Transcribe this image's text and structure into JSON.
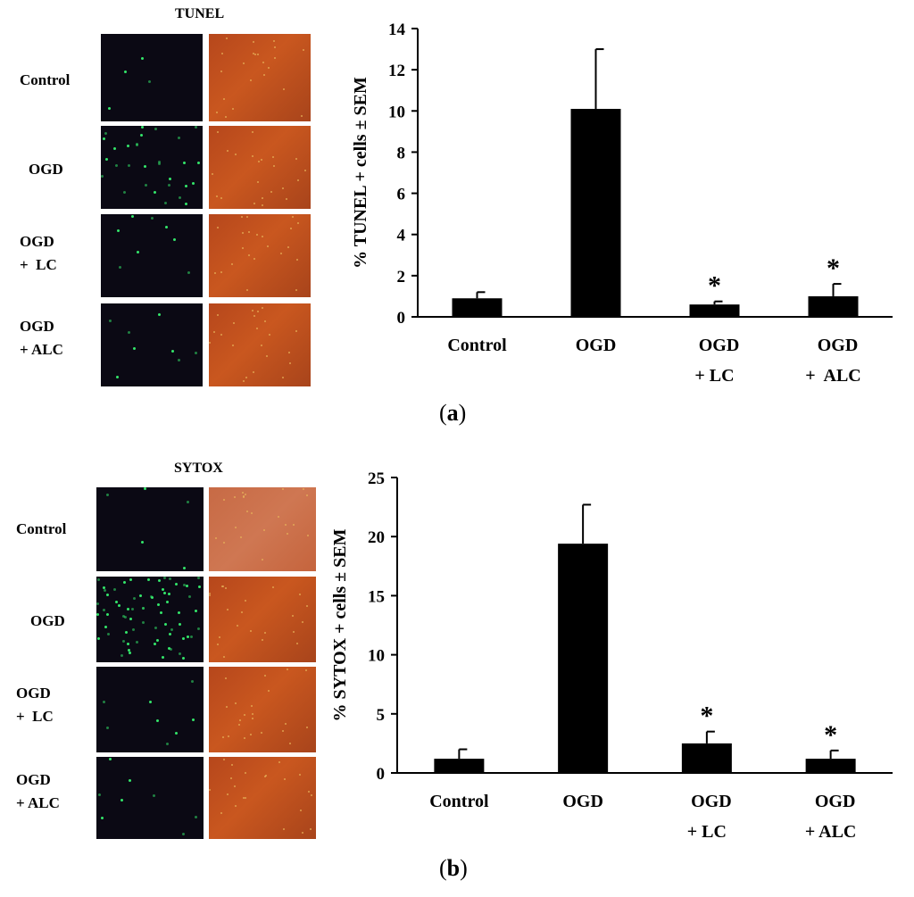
{
  "panel_a": {
    "image_title": "TUNEL",
    "row_labels": [
      "Control",
      "OGD",
      "OGD\n+  LC",
      "OGD\n+ ALC"
    ],
    "letter": "a"
  },
  "panel_b": {
    "image_title": "SYTOX",
    "row_labels": [
      "Control",
      "OGD",
      "OGD\n+  LC",
      "OGD\n+ ALC"
    ],
    "letter": "b"
  },
  "colors": {
    "bar": "#000000",
    "axis": "#000000"
  },
  "chart_data": [
    {
      "type": "bar",
      "title": "",
      "xlabel": "",
      "ylabel": "%  TUNEL + cells ± SEM",
      "categories": [
        "Control",
        "OGD",
        "OGD\n+ LC",
        "OGD\n+  ALC"
      ],
      "values": [
        0.9,
        10.1,
        0.6,
        1.0
      ],
      "errors": [
        0.3,
        2.9,
        0.15,
        0.6
      ],
      "significance": [
        "",
        "",
        "*",
        "*"
      ],
      "ylim": [
        0,
        14
      ],
      "yticks": [
        0,
        2,
        4,
        6,
        8,
        10,
        12,
        14
      ],
      "grid": false
    },
    {
      "type": "bar",
      "title": "",
      "xlabel": "",
      "ylabel": "% SYTOX + cells ± SEM",
      "categories": [
        "Control",
        "OGD",
        "OGD\n+ LC",
        "OGD\n+ ALC"
      ],
      "values": [
        1.2,
        19.4,
        2.5,
        1.2
      ],
      "errors": [
        0.8,
        3.3,
        1.0,
        0.7
      ],
      "significance": [
        "",
        "",
        "*",
        "*"
      ],
      "ylim": [
        0,
        25
      ],
      "yticks": [
        0,
        5,
        10,
        15,
        20,
        25
      ],
      "grid": false
    }
  ]
}
